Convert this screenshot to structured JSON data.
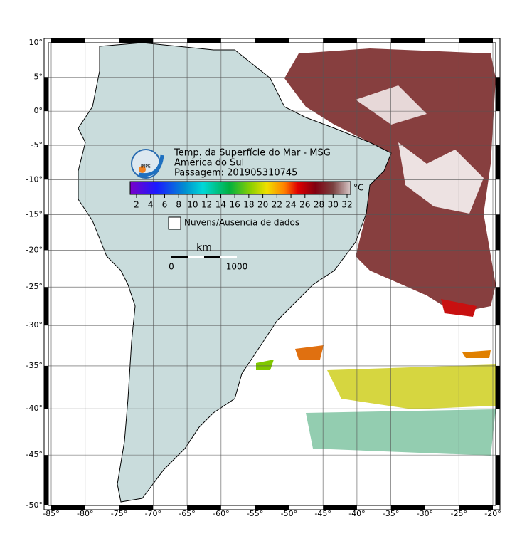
{
  "map": {
    "title": "Temp. da Superfície do Mar - MSG",
    "region": "América do Sul",
    "pass": "Passagem: 201905310745",
    "logo": "INPE",
    "colorbar": {
      "unit": "°C",
      "ticks": [
        "2",
        "4",
        "6",
        "8",
        "10",
        "12",
        "14",
        "16",
        "18",
        "20",
        "22",
        "24",
        "26",
        "28",
        "30",
        "32"
      ]
    },
    "legend": "Nuvens/Ausencia de dados",
    "scale": {
      "unit": "km",
      "start": "0",
      "end": "1000"
    },
    "lon_ticks": [
      {
        "value": -85,
        "label": "-85°"
      },
      {
        "value": -80,
        "label": "-80°"
      },
      {
        "value": -75,
        "label": "-75°"
      },
      {
        "value": -70,
        "label": "-70°"
      },
      {
        "value": -65,
        "label": "-65°"
      },
      {
        "value": -60,
        "label": "-60°"
      },
      {
        "value": -55,
        "label": "-55°"
      },
      {
        "value": -50,
        "label": "-50°"
      },
      {
        "value": -45,
        "label": "-45°"
      },
      {
        "value": -40,
        "label": "-40°"
      },
      {
        "value": -35,
        "label": "-35°"
      },
      {
        "value": -30,
        "label": "-30°"
      },
      {
        "value": -25,
        "label": "-25°"
      },
      {
        "value": -20,
        "label": "-20°"
      }
    ],
    "lat_ticks": [
      {
        "value": 10,
        "label": "10°"
      },
      {
        "value": 5,
        "label": "5°"
      },
      {
        "value": 0,
        "label": "0°"
      },
      {
        "value": -5,
        "label": "-5°"
      },
      {
        "value": -10,
        "label": "-10°"
      },
      {
        "value": -15,
        "label": "-15°"
      },
      {
        "value": -20,
        "label": "-20°"
      },
      {
        "value": -25,
        "label": "-25°"
      },
      {
        "value": -30,
        "label": "-30°"
      },
      {
        "value": -35,
        "label": "-35°"
      },
      {
        "value": -40,
        "label": "-40°"
      },
      {
        "value": -45,
        "label": "-45°"
      },
      {
        "value": -50,
        "label": "-50°"
      }
    ]
  }
}
